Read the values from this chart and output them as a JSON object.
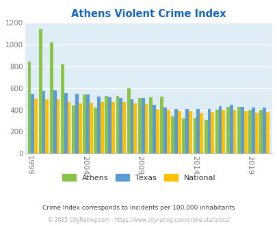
{
  "title": "Athens Violent Crime Index",
  "years": [
    1999,
    2000,
    2001,
    2002,
    2003,
    2004,
    2005,
    2006,
    2007,
    2008,
    2009,
    2010,
    2011,
    2012,
    2013,
    2014,
    2015,
    2016,
    2017,
    2018,
    2019,
    2020
  ],
  "athens": [
    845,
    1145,
    1020,
    815,
    440,
    540,
    420,
    530,
    530,
    595,
    510,
    515,
    520,
    340,
    325,
    330,
    310,
    405,
    430,
    430,
    395,
    395
  ],
  "texas": [
    550,
    570,
    580,
    555,
    545,
    540,
    525,
    515,
    510,
    500,
    510,
    450,
    420,
    410,
    410,
    410,
    410,
    435,
    445,
    430,
    420,
    420
  ],
  "national": [
    505,
    500,
    495,
    470,
    460,
    465,
    470,
    475,
    470,
    460,
    455,
    405,
    395,
    390,
    390,
    375,
    380,
    395,
    395,
    390,
    375,
    380
  ],
  "athens_color": "#8bc34a",
  "texas_color": "#5b9bd5",
  "national_color": "#ffc000",
  "bg_color": "#deedf5",
  "title_color": "#1565c0",
  "xlabel_ticks": [
    1999,
    2004,
    2009,
    2014,
    2019
  ],
  "ylim": [
    0,
    1200
  ],
  "yticks": [
    0,
    200,
    400,
    600,
    800,
    1000,
    1200
  ],
  "footer1": "Crime Index corresponds to incidents per 100,000 inhabitants",
  "footer2": "© 2025 CityRating.com - https://www.cityrating.com/crime-statistics/",
  "legend_labels": [
    "Athens",
    "Texas",
    "National"
  ]
}
